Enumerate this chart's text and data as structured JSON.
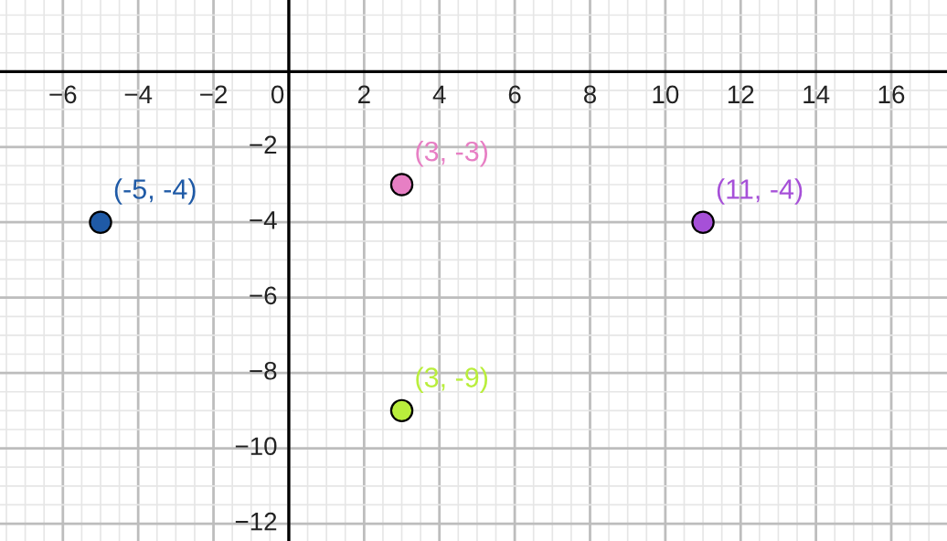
{
  "chart_data": {
    "type": "scatter",
    "x": [
      -5,
      3,
      11,
      3
    ],
    "values": [
      -4,
      -3,
      -4,
      -9
    ],
    "colors": [
      "#1f5aa6",
      "#e77fc4",
      "#a650d8",
      "#b9ee3c"
    ],
    "marker": "circle",
    "annotations": [
      {
        "text": "(-5, -4)",
        "x": -5,
        "y": -4
      },
      {
        "text": "(3, -3)",
        "x": 3,
        "y": -3
      },
      {
        "text": "(11, -4)",
        "x": 11,
        "y": -4
      },
      {
        "text": "(3, -9)",
        "x": 3,
        "y": -9
      }
    ],
    "xlim": [
      -7.67,
      17.48
    ],
    "ylim": [
      -12.46,
      1.9
    ],
    "xticks": [
      {
        "value": -6,
        "label": "−6"
      },
      {
        "value": -4,
        "label": "−4"
      },
      {
        "value": -2,
        "label": "−2"
      },
      0,
      2,
      4,
      6,
      8,
      10,
      12,
      14,
      16
    ],
    "yticks": [
      {
        "value": -2,
        "label": "−2"
      },
      {
        "value": -4,
        "label": "−4"
      },
      {
        "value": -6,
        "label": "−6"
      },
      {
        "value": -8,
        "label": "−8"
      },
      {
        "value": -10,
        "label": "−10"
      },
      {
        "value": -12,
        "label": "−12"
      }
    ],
    "grid": true
  }
}
